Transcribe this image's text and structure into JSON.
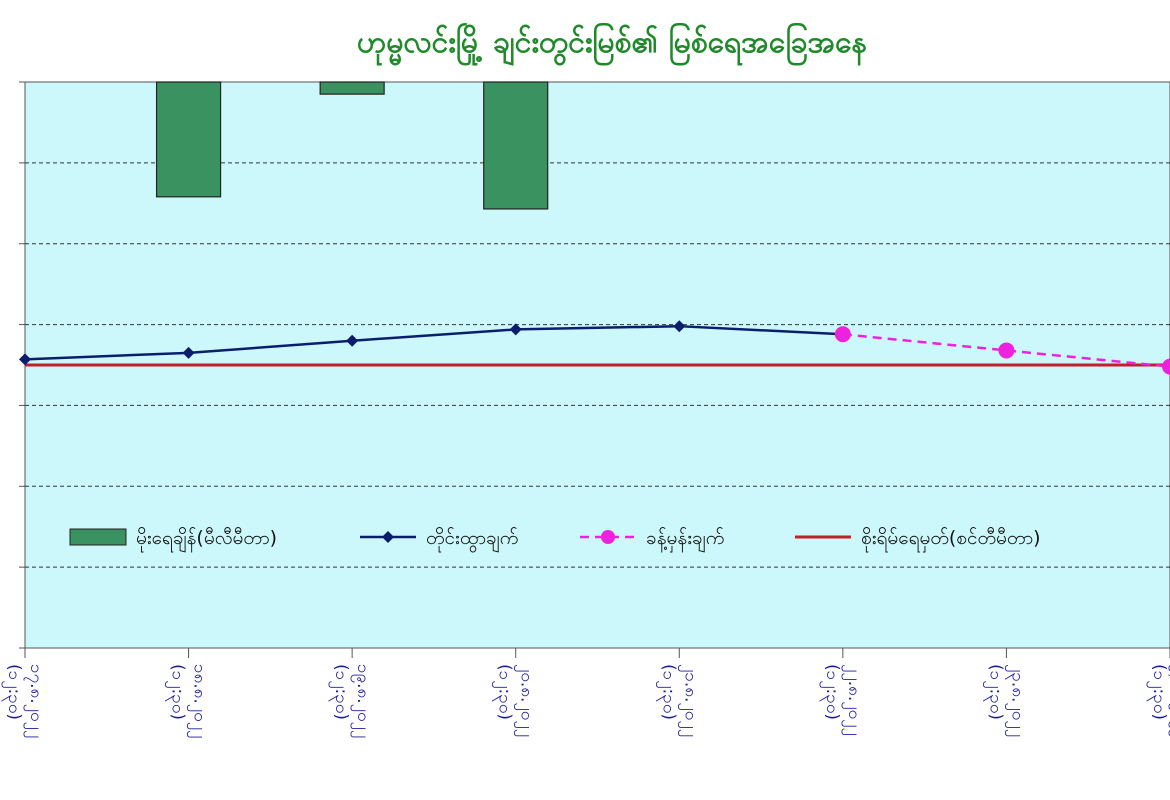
{
  "chart_data": {
    "type": "bar",
    "title": "ဟုမ္မလင်းမြို့ ချင်းတွင်းမြစ်၏ မြစ်ရေအခြေအနေ",
    "xlabel": "",
    "ylabel": "",
    "ylim": [
      0,
      7
    ],
    "grid": true,
    "legend_position": "inside-bottom",
    "categories": [
      "၁၇.၈.၂၀၂၂ (၁၂:၃၀)",
      "၁၈.၈.၂၀၂၂ (၁၂:၃၀)",
      "၁၉.၈.၂၀၂၂ (၁၂:၃၀)",
      "၂၀.၈.၂၀၂၂ (၁၂:၃၀)",
      "၂၁.၈.၂၀၂၂ (၁၂:၃၀)",
      "၂၂.၈.၂၀၂၂ (၁၂:၃၀)",
      "၂၃.၈.၂၀၂၂ (၁၂:၃၀)",
      "၂၄.၈.၂၀၂၂ (၁၂:၃၀)"
    ],
    "series": [
      {
        "name": "မိုးရေချိန်(မီလီမီတာ)",
        "kind": "bar",
        "color": "#3a9260",
        "values": [
          0,
          1.42,
          0.15,
          1.57,
          0,
          0,
          0,
          0
        ]
      },
      {
        "name": "တိုင်းထွာချက်",
        "kind": "line",
        "color": "#0b1e6e",
        "values": [
          3.57,
          3.65,
          3.8,
          3.94,
          3.98,
          3.88,
          null,
          null
        ]
      },
      {
        "name": "ခန့်မှန်းချက်",
        "kind": "dashed-line",
        "color": "#ee22dd",
        "values": [
          null,
          null,
          null,
          null,
          null,
          3.88,
          3.68,
          3.48
        ]
      },
      {
        "name": "စိုးရိမ်ရေမှတ်(စင်တီမီတာ)",
        "kind": "hline",
        "color": "#c0202a",
        "values": [
          3.5,
          3.5,
          3.5,
          3.5,
          3.5,
          3.5,
          3.5,
          3.5
        ]
      }
    ]
  },
  "colors": {
    "plot_background": "#ccf8fb",
    "title": "#1f8a2a",
    "tick_text": "#1a1a9a"
  }
}
